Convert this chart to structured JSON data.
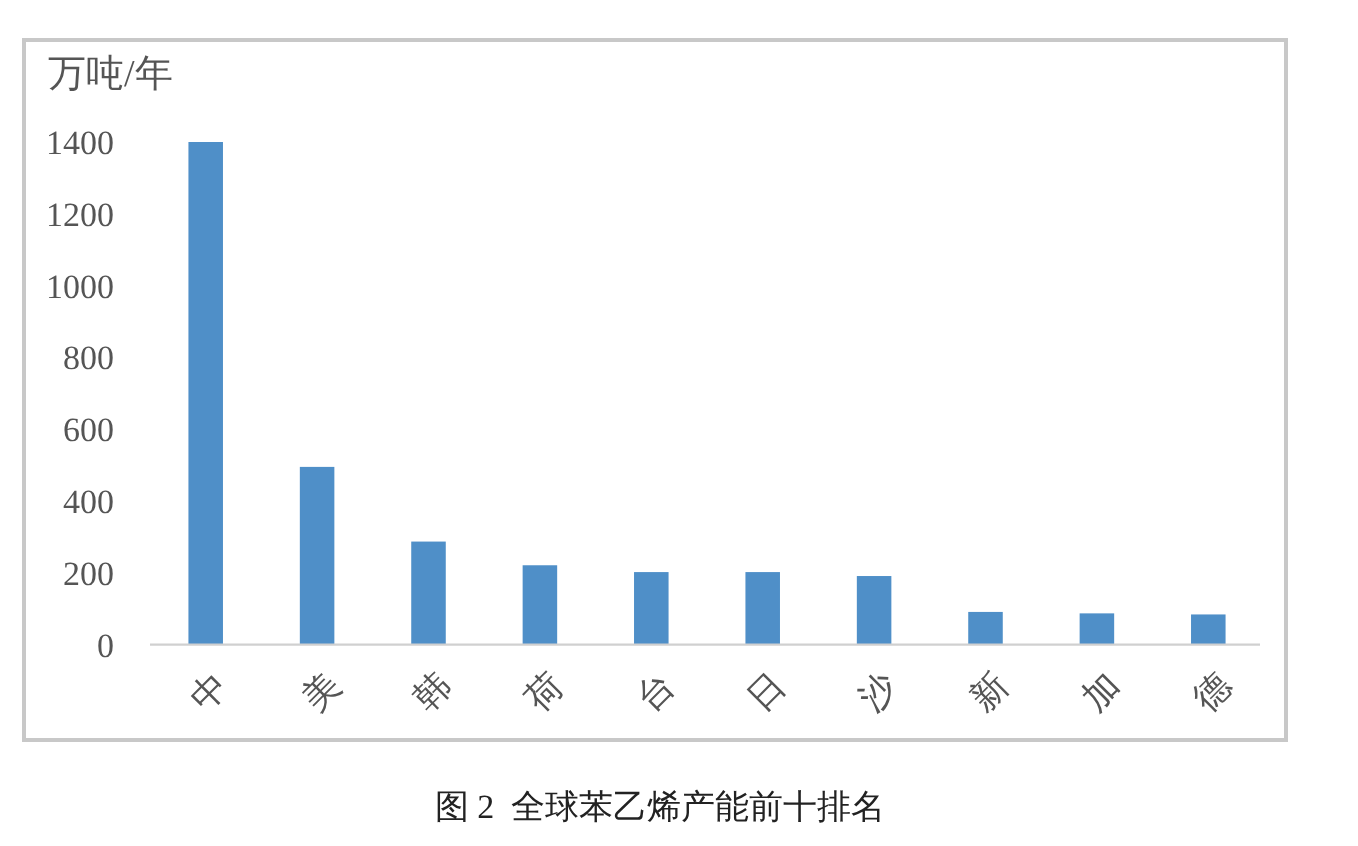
{
  "chart_data": {
    "type": "bar",
    "ylabel": "万吨/年",
    "annotations": [
      "图 2  全球苯乙烯产能前十排名"
    ],
    "categories": [
      "中",
      "美",
      "韩",
      "荷",
      "台",
      "日",
      "沙",
      "新",
      "加",
      "德"
    ],
    "values": [
      1400,
      495,
      287,
      221,
      202,
      202,
      191,
      91,
      87,
      84
    ],
    "color": "#4f8fc8",
    "ylim": [
      0,
      1400
    ],
    "yticks": [
      0,
      200,
      400,
      600,
      800,
      1000,
      1200,
      1400
    ],
    "grid": false
  }
}
